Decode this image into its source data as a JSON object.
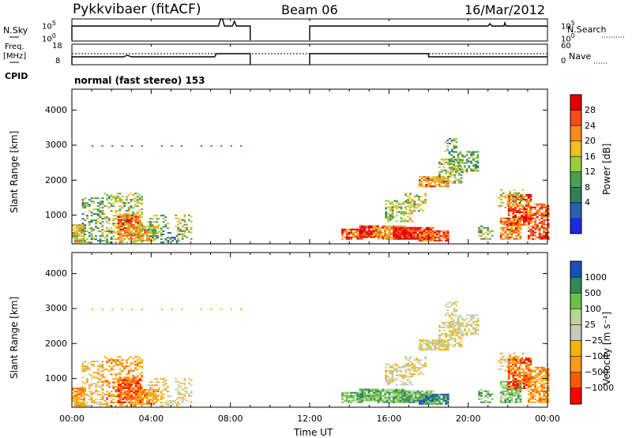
{
  "header": {
    "title": "Pykkvibaer (fitACF)",
    "beam": "Beam 06",
    "date": "16/Mar/2012"
  },
  "top_panels": {
    "nsky_label": "N.Sky",
    "nsearch_label": "N.Search",
    "freq_label_line1": "Freq.",
    "freq_label_line2": "[MHz]",
    "nave_label": "Nave",
    "cpid_label": "CPID",
    "cpid_text": "normal (fast stereo) 153",
    "nsky_ticks": [
      "10^5",
      "10^0"
    ],
    "nsearch_ticks": [
      "10^5",
      "10^0"
    ],
    "freq_ticks": [
      "18",
      "8"
    ],
    "nave_ticks": [
      "60",
      "0"
    ]
  },
  "colors": {
    "power_scale": [
      "#1a2be0",
      "#2a5fb0",
      "#2f7f5a",
      "#4aa04f",
      "#9ccc3c",
      "#f0c020",
      "#ff8c1a",
      "#ff4a1a",
      "#e00000"
    ],
    "velocity_scale": [
      "#ff0000",
      "#ff5a00",
      "#ff9a1a",
      "#f4b400",
      "#c8c8c0",
      "#b8d890",
      "#6cc04a",
      "#2e8b57",
      "#1a4fc0"
    ]
  },
  "x_axis": {
    "label": "Time UT",
    "ticks": [
      "00:00",
      "04:00",
      "08:00",
      "12:00",
      "16:00",
      "20:00",
      "00:00"
    ]
  },
  "chart_data": [
    {
      "type": "heatmap",
      "title": "Power",
      "ylabel": "Slant Range [km]",
      "colorbar_label": "Power [dB]",
      "colorbar_ticks": [
        "28",
        "24",
        "20",
        "16",
        "12",
        "8",
        "4"
      ],
      "x_range_hours": [
        0,
        24
      ],
      "ylim": [
        180,
        4600
      ],
      "y_ticks": [
        1000,
        2000,
        3000,
        4000
      ],
      "data_gap_hours": [
        9,
        12
      ]
    },
    {
      "type": "heatmap",
      "title": "Velocity",
      "ylabel": "Slant Range [km]",
      "colorbar_label": "Velocity [m s⁻¹]",
      "colorbar_ticks": [
        "1000",
        "500",
        "100",
        "25",
        "−25",
        "−100",
        "−500",
        "−1000"
      ],
      "x_range_hours": [
        0,
        24
      ],
      "ylim": [
        180,
        4600
      ],
      "y_ticks": [
        1000,
        2000,
        3000,
        4000
      ],
      "data_gap_hours": [
        9,
        12
      ]
    }
  ]
}
